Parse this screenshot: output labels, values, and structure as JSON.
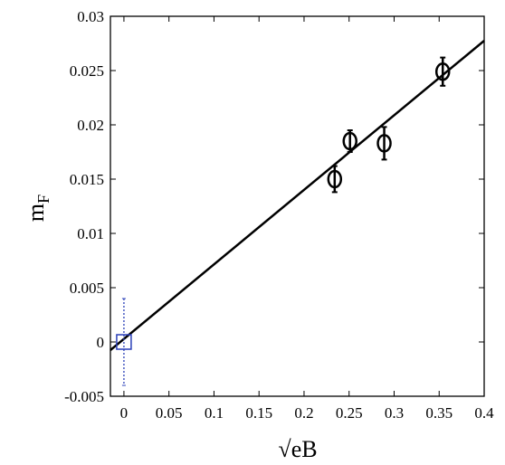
{
  "chart_data": {
    "type": "scatter",
    "title": "",
    "xlabel": "√eB",
    "ylabel": "m",
    "ylabel_subscript": "F",
    "xlim": [
      -0.015,
      0.4
    ],
    "ylim": [
      -0.005,
      0.03
    ],
    "x_ticks": [
      0,
      0.05,
      0.1,
      0.15,
      0.2,
      0.25,
      0.3,
      0.35,
      0.4
    ],
    "x_tick_labels": [
      "0",
      "0.05",
      "0.1",
      "0.15",
      "0.2",
      "0.25",
      "0.3",
      "0.35",
      "0.4"
    ],
    "y_ticks": [
      -0.005,
      0,
      0.005,
      0.01,
      0.015,
      0.02,
      0.025,
      0.03
    ],
    "y_tick_labels": [
      "-0.005",
      "0",
      "0.005",
      "0.01",
      "0.015",
      "0.02",
      "0.025",
      "0.03"
    ],
    "grid": false,
    "legend": "none",
    "series": [
      {
        "marker": "circle",
        "color": "#000000",
        "points": [
          {
            "x": 0.234,
            "y": 0.015,
            "err": 0.0012
          },
          {
            "x": 0.251,
            "y": 0.0185,
            "err": 0.001
          },
          {
            "x": 0.289,
            "y": 0.0183,
            "err": 0.0015
          },
          {
            "x": 0.354,
            "y": 0.0249,
            "err": 0.0013
          }
        ]
      },
      {
        "marker": "square",
        "color": "#2a3fb8",
        "error_style": "dotted",
        "points": [
          {
            "x": 0.0,
            "y": 0.0,
            "err": 0.004
          }
        ]
      }
    ],
    "fit_line": {
      "color": "#000000",
      "from": {
        "x": -0.015,
        "y": -0.00075
      },
      "to": {
        "x": 0.4,
        "y": 0.02775
      }
    }
  }
}
